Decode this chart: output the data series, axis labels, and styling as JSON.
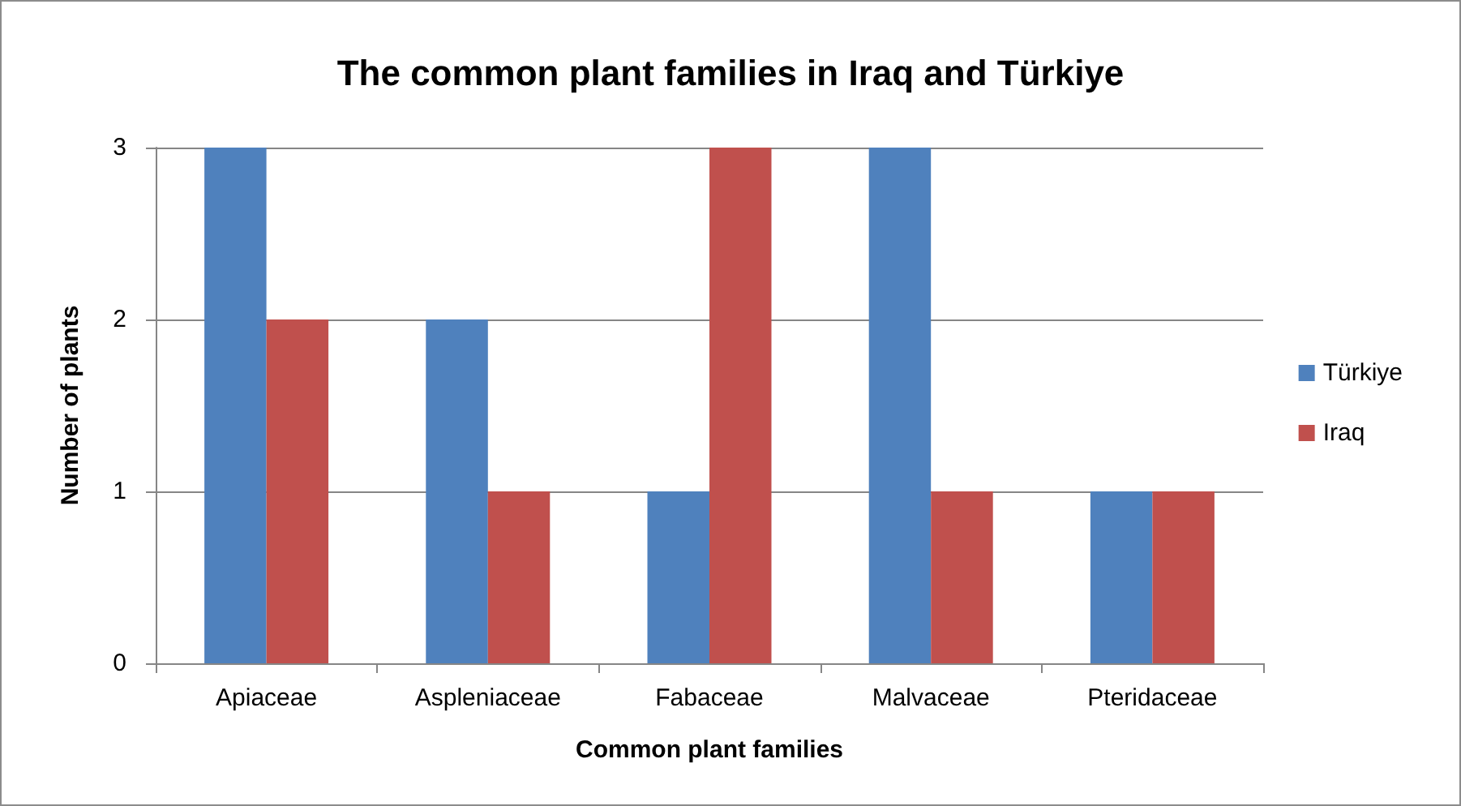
{
  "chart_data": {
    "type": "bar",
    "title": "The common plant families in Iraq and Türkiye",
    "xlabel": "Common plant families",
    "ylabel": "Number of plants",
    "categories": [
      "Apiaceae",
      "Aspleniaceae",
      "Fabaceae",
      "Malvaceae",
      "Pteridaceae"
    ],
    "series": [
      {
        "name": "Türkiye",
        "color": "#4f81bd",
        "values": [
          3,
          2,
          1,
          3,
          1
        ]
      },
      {
        "name": "Iraq",
        "color": "#c0504d",
        "values": [
          2,
          1,
          3,
          1,
          1
        ]
      }
    ],
    "ylim": [
      0,
      3
    ],
    "yticks": [
      0,
      1,
      2,
      3
    ],
    "grid": "y",
    "legend": "right"
  }
}
